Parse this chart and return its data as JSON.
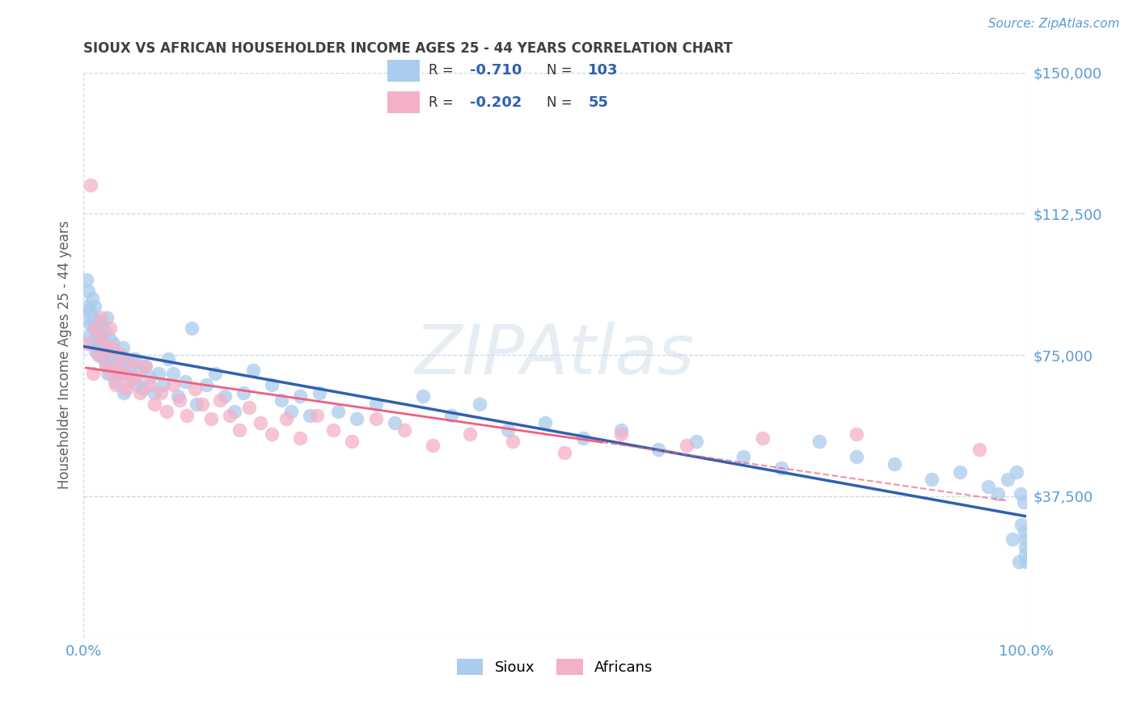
{
  "title": "SIOUX VS AFRICAN HOUSEHOLDER INCOME AGES 25 - 44 YEARS CORRELATION CHART",
  "source": "Source: ZipAtlas.com",
  "ylabel": "Householder Income Ages 25 - 44 years",
  "xlim": [
    0,
    1.0
  ],
  "ylim": [
    0,
    150000
  ],
  "yticks": [
    0,
    37500,
    75000,
    112500,
    150000
  ],
  "ytick_labels": [
    "",
    "$37,500",
    "$75,000",
    "$112,500",
    "$150,000"
  ],
  "xtick_labels": [
    "0.0%",
    "100.0%"
  ],
  "title_color": "#404040",
  "axis_color": "#5b9bd5",
  "grid_color": "#c8d8ec",
  "sioux_color": "#aaccee",
  "african_color": "#f4b0c8",
  "sioux_line_color": "#3060b0",
  "african_line_color": "#f06080",
  "legend_r_sioux": "-0.710",
  "legend_n_sioux": "103",
  "legend_r_african": "-0.202",
  "legend_n_african": "55",
  "watermark": "ZIPAtlas",
  "sioux_x": [
    0.001,
    0.003,
    0.004,
    0.005,
    0.006,
    0.007,
    0.008,
    0.009,
    0.01,
    0.01,
    0.011,
    0.012,
    0.013,
    0.014,
    0.015,
    0.015,
    0.016,
    0.017,
    0.018,
    0.019,
    0.02,
    0.021,
    0.022,
    0.023,
    0.024,
    0.025,
    0.025,
    0.026,
    0.027,
    0.028,
    0.03,
    0.032,
    0.033,
    0.035,
    0.037,
    0.04,
    0.042,
    0.043,
    0.045,
    0.047,
    0.05,
    0.052,
    0.055,
    0.057,
    0.06,
    0.063,
    0.066,
    0.07,
    0.075,
    0.08,
    0.085,
    0.09,
    0.095,
    0.1,
    0.108,
    0.115,
    0.12,
    0.13,
    0.14,
    0.15,
    0.16,
    0.17,
    0.18,
    0.2,
    0.21,
    0.22,
    0.23,
    0.24,
    0.25,
    0.27,
    0.29,
    0.31,
    0.33,
    0.36,
    0.39,
    0.42,
    0.45,
    0.49,
    0.53,
    0.57,
    0.61,
    0.65,
    0.7,
    0.74,
    0.78,
    0.82,
    0.86,
    0.9,
    0.93,
    0.96,
    0.97,
    0.98,
    0.985,
    0.99,
    0.992,
    0.994,
    0.995,
    0.997,
    0.998,
    0.999,
    0.9992,
    0.9995,
    0.9998
  ],
  "sioux_y": [
    85000,
    95000,
    88000,
    92000,
    80000,
    87000,
    83000,
    90000,
    78000,
    85000,
    82000,
    88000,
    76000,
    80000,
    84000,
    78000,
    82000,
    75000,
    80000,
    77000,
    83000,
    74000,
    78000,
    81000,
    72000,
    76000,
    85000,
    70000,
    74000,
    79000,
    72000,
    78000,
    68000,
    73000,
    70000,
    75000,
    77000,
    65000,
    70000,
    73000,
    72000,
    69000,
    74000,
    67000,
    71000,
    66000,
    72000,
    69000,
    65000,
    70000,
    67000,
    74000,
    70000,
    64000,
    68000,
    82000,
    62000,
    67000,
    70000,
    64000,
    60000,
    65000,
    71000,
    67000,
    63000,
    60000,
    64000,
    59000,
    65000,
    60000,
    58000,
    62000,
    57000,
    64000,
    59000,
    62000,
    55000,
    57000,
    53000,
    55000,
    50000,
    52000,
    48000,
    45000,
    52000,
    48000,
    46000,
    42000,
    44000,
    40000,
    38000,
    42000,
    26000,
    44000,
    20000,
    38000,
    30000,
    36000,
    28000,
    26000,
    24000,
    22000,
    20000
  ],
  "african_x": [
    0.003,
    0.008,
    0.01,
    0.012,
    0.015,
    0.017,
    0.019,
    0.021,
    0.024,
    0.026,
    0.028,
    0.03,
    0.032,
    0.034,
    0.036,
    0.039,
    0.042,
    0.045,
    0.048,
    0.052,
    0.056,
    0.06,
    0.065,
    0.07,
    0.075,
    0.082,
    0.088,
    0.095,
    0.102,
    0.11,
    0.118,
    0.126,
    0.135,
    0.145,
    0.155,
    0.165,
    0.176,
    0.188,
    0.2,
    0.215,
    0.23,
    0.248,
    0.265,
    0.285,
    0.31,
    0.34,
    0.37,
    0.41,
    0.455,
    0.51,
    0.57,
    0.64,
    0.72,
    0.82,
    0.95
  ],
  "african_y": [
    78000,
    120000,
    70000,
    82000,
    75000,
    80000,
    85000,
    78000,
    72000,
    76000,
    82000,
    70000,
    77000,
    67000,
    72000,
    75000,
    70000,
    66000,
    68000,
    73000,
    69000,
    65000,
    72000,
    67000,
    62000,
    65000,
    60000,
    67000,
    63000,
    59000,
    66000,
    62000,
    58000,
    63000,
    59000,
    55000,
    61000,
    57000,
    54000,
    58000,
    53000,
    59000,
    55000,
    52000,
    58000,
    55000,
    51000,
    54000,
    52000,
    49000,
    54000,
    51000,
    53000,
    54000,
    50000
  ]
}
